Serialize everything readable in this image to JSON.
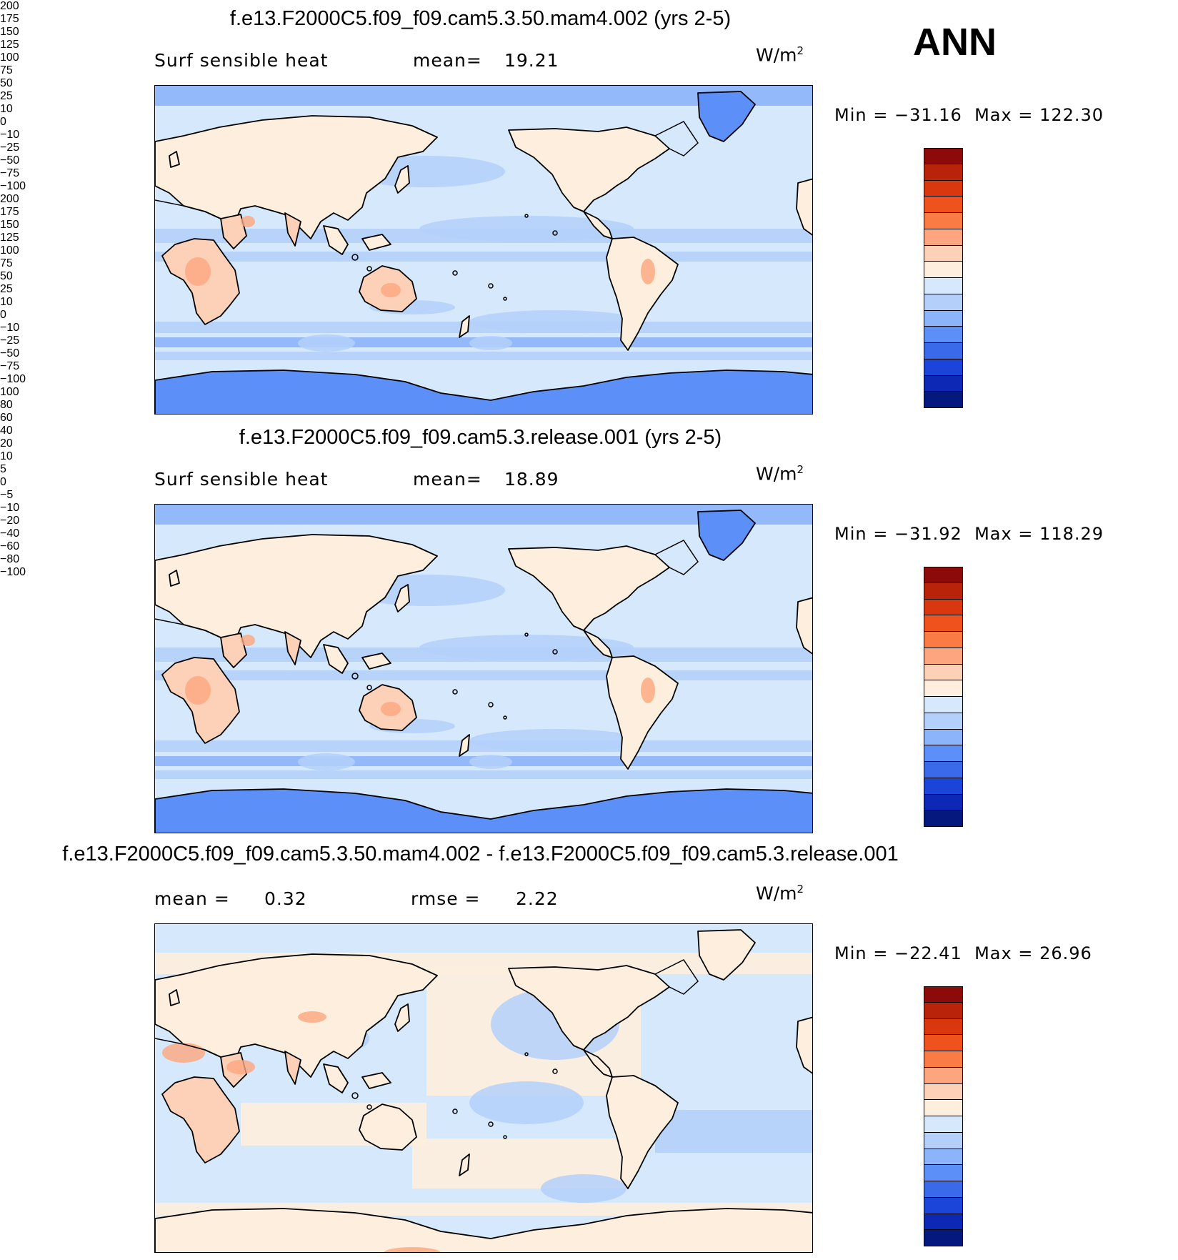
{
  "season": "ANN",
  "panels": [
    {
      "title": "f.e13.F2000C5.f09_f09.cam5.3.50.mam4.002 (yrs 2-5)",
      "variable": "Surf sensible heat",
      "stat1_label": "mean=",
      "stat1_value": "19.21",
      "stat2_label": "",
      "stat2_value": "",
      "units": "W/m",
      "units_sup": "2",
      "min_label": "Min =",
      "min_value": "−31.16",
      "max_label": "Max =",
      "max_value": "122.30",
      "palette": "abs",
      "levels": [
        "200",
        "175",
        "150",
        "125",
        "100",
        "75",
        "50",
        "25",
        "10",
        "0",
        "−10",
        "−25",
        "−50",
        "−75",
        "−100"
      ],
      "colors": [
        "#8c0a0a",
        "#b9230a",
        "#d9380f",
        "#f0521e",
        "#fb7b45",
        "#fca57e",
        "#fdd0b8",
        "#fdeedd",
        "#d6e8fb",
        "#b4d0fa",
        "#8cb4fb",
        "#5c8ff7",
        "#3a6aea",
        "#1b45d8",
        "#0c28b4",
        "#04187e"
      ]
    },
    {
      "title": "f.e13.F2000C5.f09_f09.cam5.3.release.001 (yrs 2-5)",
      "variable": "Surf sensible heat",
      "stat1_label": "mean=",
      "stat1_value": "18.89",
      "stat2_label": "",
      "stat2_value": "",
      "units": "W/m",
      "units_sup": "2",
      "min_label": "Min =",
      "min_value": "−31.92",
      "max_label": "Max =",
      "max_value": "118.29",
      "palette": "abs",
      "levels": [
        "200",
        "175",
        "150",
        "125",
        "100",
        "75",
        "50",
        "25",
        "10",
        "0",
        "−10",
        "−25",
        "−50",
        "−75",
        "−100"
      ],
      "colors": [
        "#8c0a0a",
        "#b9230a",
        "#d9380f",
        "#f0521e",
        "#fb7b45",
        "#fca57e",
        "#fdd0b8",
        "#fdeedd",
        "#d6e8fb",
        "#b4d0fa",
        "#8cb4fb",
        "#5c8ff7",
        "#3a6aea",
        "#1b45d8",
        "#0c28b4",
        "#04187e"
      ]
    },
    {
      "title": "f.e13.F2000C5.f09_f09.cam5.3.50.mam4.002 - f.e13.F2000C5.f09_f09.cam5.3.release.001",
      "variable": "",
      "stat1_label": "mean =",
      "stat1_value": "0.32",
      "stat2_label": "rmse =",
      "stat2_value": "2.22",
      "units": "W/m",
      "units_sup": "2",
      "min_label": "Min =",
      "min_value": "−22.41",
      "max_label": "Max =",
      "max_value": "26.96",
      "palette": "diff",
      "levels": [
        "100",
        "80",
        "60",
        "40",
        "20",
        "10",
        "5",
        "0",
        "−5",
        "−10",
        "−20",
        "−40",
        "−60",
        "−80",
        "−100"
      ],
      "colors": [
        "#8c0a0a",
        "#b9230a",
        "#d9380f",
        "#f0521e",
        "#fb7b45",
        "#fca57e",
        "#fdd0b8",
        "#fdeedd",
        "#d6e8fb",
        "#b4d0fa",
        "#8cb4fb",
        "#5c8ff7",
        "#3a6aea",
        "#1b45d8",
        "#0c28b4",
        "#04187e"
      ]
    }
  ]
}
